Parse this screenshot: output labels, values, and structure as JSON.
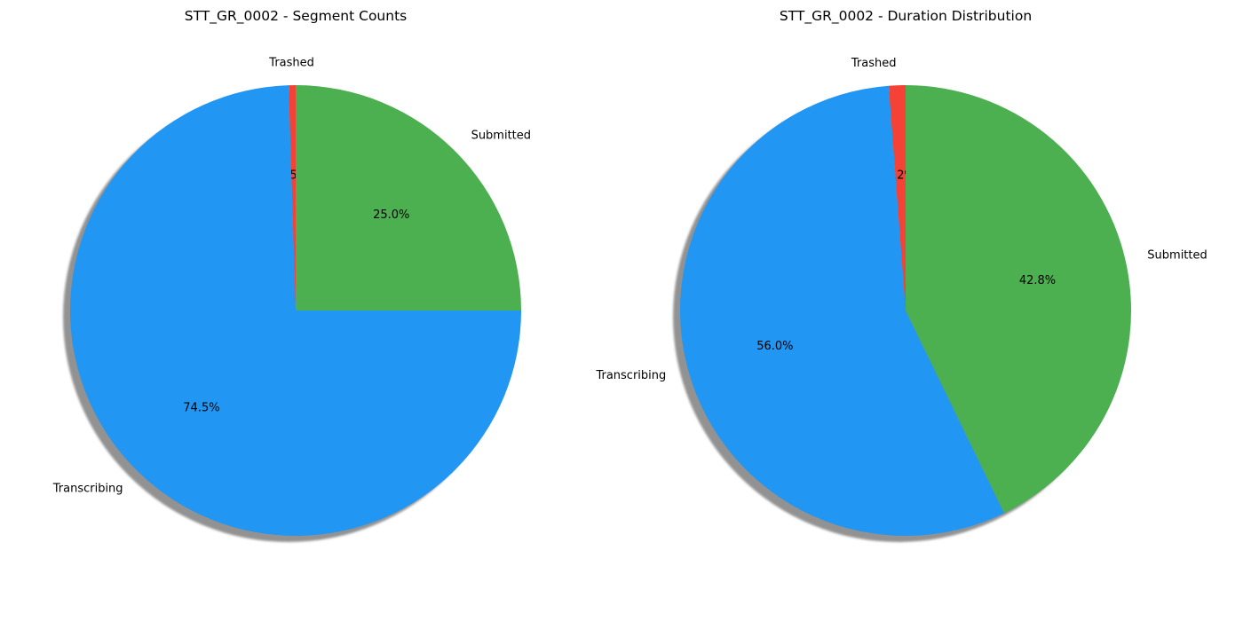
{
  "chart_data": [
    {
      "type": "pie",
      "title": "STT_GR_0002 - Segment Counts",
      "slices": [
        {
          "label": "Trashed",
          "value": 0.5,
          "pct_label": "0.5%",
          "color": "#f44336"
        },
        {
          "label": "Transcribing",
          "value": 74.5,
          "pct_label": "74.5%",
          "color": "#2196f3"
        },
        {
          "label": "Submitted",
          "value": 25.0,
          "pct_label": "25.0%",
          "color": "#4caf50"
        }
      ],
      "shadow": true,
      "legend": "none"
    },
    {
      "type": "pie",
      "title": "STT_GR_0002 - Duration Distribution",
      "slices": [
        {
          "label": "Trashed",
          "value": 1.2,
          "pct_label": "1.2%",
          "color": "#f44336"
        },
        {
          "label": "Transcribing",
          "value": 56.0,
          "pct_label": "56.0%",
          "color": "#2196f3"
        },
        {
          "label": "Submitted",
          "value": 42.8,
          "pct_label": "42.8%",
          "color": "#4caf50"
        }
      ],
      "shadow": true,
      "legend": "none"
    }
  ]
}
